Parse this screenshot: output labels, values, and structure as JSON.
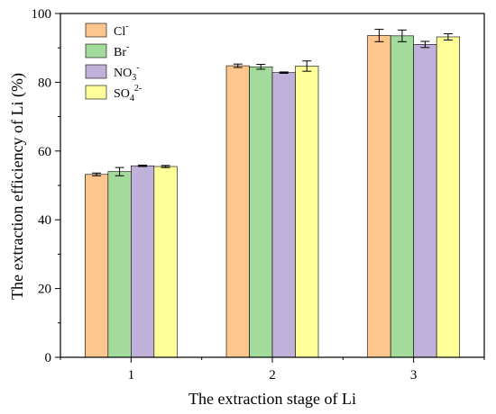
{
  "chart_data": {
    "type": "bar",
    "categories": [
      "1",
      "2",
      "3"
    ],
    "xlabel": "The extraction stage of Li",
    "ylabel": "The extraction efficiency of Li (%)",
    "ylim": [
      0,
      100
    ],
    "yticks": [
      0,
      20,
      40,
      60,
      80,
      100
    ],
    "grid": false,
    "legend_position": "top-left",
    "series": [
      {
        "label": "Cl",
        "sup": "-",
        "color": "#FDC68C",
        "values": [
          53.2,
          84.8,
          93.6
        ],
        "errors": [
          0.4,
          0.5,
          1.8
        ]
      },
      {
        "label": "Br",
        "sup": "-",
        "color": "#A2DB9C",
        "values": [
          54.0,
          84.5,
          93.5
        ],
        "errors": [
          1.2,
          0.7,
          1.7
        ]
      },
      {
        "label": "NO",
        "sub": "3",
        "sup": "-",
        "color": "#C0B1DA",
        "values": [
          55.7,
          82.8,
          91.0
        ],
        "errors": [
          0.2,
          0.2,
          0.9
        ]
      },
      {
        "label": "SO",
        "sub": "4",
        "sup": "2-",
        "color": "#FFFF99",
        "values": [
          55.5,
          84.7,
          93.2
        ],
        "errors": [
          0.3,
          1.5,
          0.9
        ]
      }
    ]
  }
}
